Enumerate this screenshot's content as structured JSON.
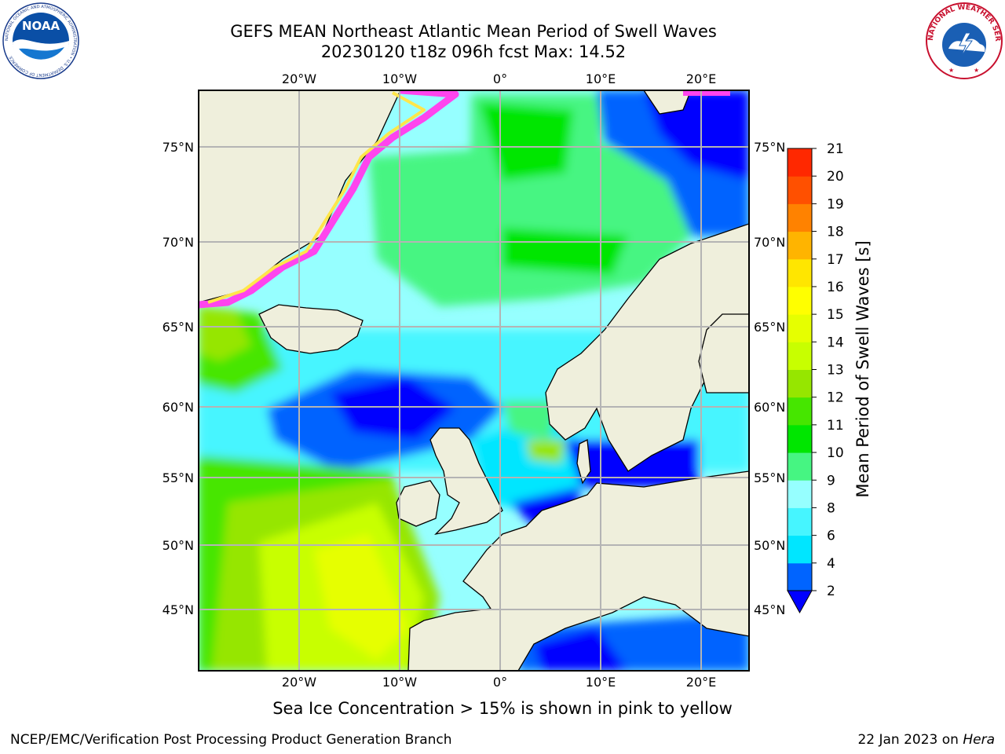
{
  "title_line1": "GEFS MEAN Northeast Atlantic Mean Period of Swell Waves",
  "title_line2": "20230120 t18z 096h fcst   Max: 14.52",
  "lon_labels": [
    "20°W",
    "10°W",
    "0°",
    "10°E",
    "20°E"
  ],
  "lat_labels": [
    "75°N",
    "70°N",
    "65°N",
    "60°N",
    "55°N",
    "50°N",
    "45°N"
  ],
  "colorbar": {
    "label": "Mean Period of Swell Waves [s]",
    "ticks": [
      "2",
      "4",
      "6",
      "8",
      "9",
      "10",
      "11",
      "12",
      "13",
      "14",
      "15",
      "16",
      "17",
      "18",
      "19",
      "20",
      "21"
    ],
    "colors": [
      "#0064ff",
      "#00e6ff",
      "#46f5ff",
      "#96ffff",
      "#46f582",
      "#00e600",
      "#46e600",
      "#96e600",
      "#c8ff00",
      "#e6ff00",
      "#ffff00",
      "#ffe600",
      "#ffb400",
      "#ff8200",
      "#ff5000",
      "#ff2800"
    ],
    "underflow_color": "#0000ff"
  },
  "colors": {
    "land": "#efefdc",
    "ice_pink": "#ff44ee",
    "ice_yellow": "#ffe64a",
    "grid": "#b4b4b4"
  },
  "footnote": "Sea Ice Concentration > 15% is shown in pink to yellow",
  "credit_left": "NCEP/EMC/Verification Post Processing Product Generation Branch",
  "credit_right_date": "22 Jan 2023 on ",
  "credit_right_host": "Hera",
  "logos": {
    "noaa_text": "NOAA",
    "noaa_ring": "NATIONAL OCEANIC AND ATMOSPHERIC ADMINISTRATION • U.S. DEPARTMENT OF COMMERCE",
    "nws_ring": "NATIONAL WEATHER SERVICE"
  }
}
